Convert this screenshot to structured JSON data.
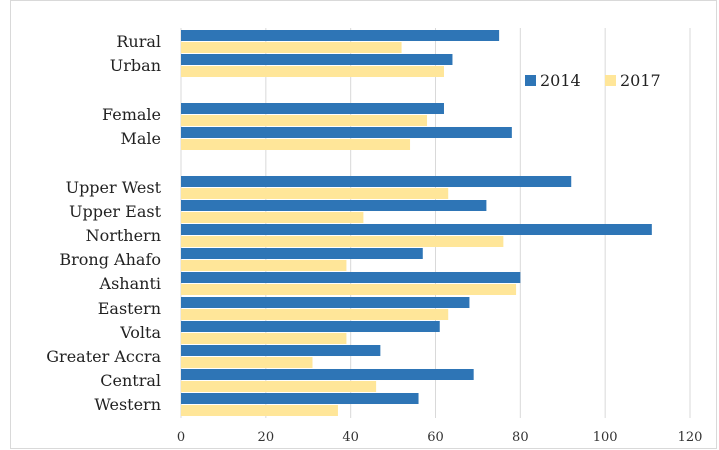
{
  "chart_data": {
    "type": "bar",
    "orientation": "horizontal",
    "categories": [
      "Rural",
      "Urban",
      "Female",
      "Male",
      "Upper West",
      "Upper East",
      "Northern",
      "Brong Ahafo",
      "Ashanti",
      "Eastern",
      "Volta",
      "Greater Accra",
      "Central",
      "Western"
    ],
    "series": [
      {
        "name": "2014",
        "color": "#2e75b6",
        "values": [
          75,
          64,
          62,
          78,
          92,
          72,
          111,
          57,
          80,
          68,
          61,
          47,
          69,
          56
        ]
      },
      {
        "name": "2017",
        "color": "#ffe699",
        "values": [
          52,
          62,
          58,
          54,
          63,
          43,
          76,
          39,
          79,
          63,
          39,
          31,
          46,
          37
        ]
      }
    ],
    "xlim": [
      0,
      120
    ],
    "xticks": [
      0,
      20,
      40,
      60,
      80,
      100,
      120
    ],
    "grid": true,
    "legend": "top-right",
    "title": "",
    "xlabel": "",
    "ylabel": ""
  }
}
